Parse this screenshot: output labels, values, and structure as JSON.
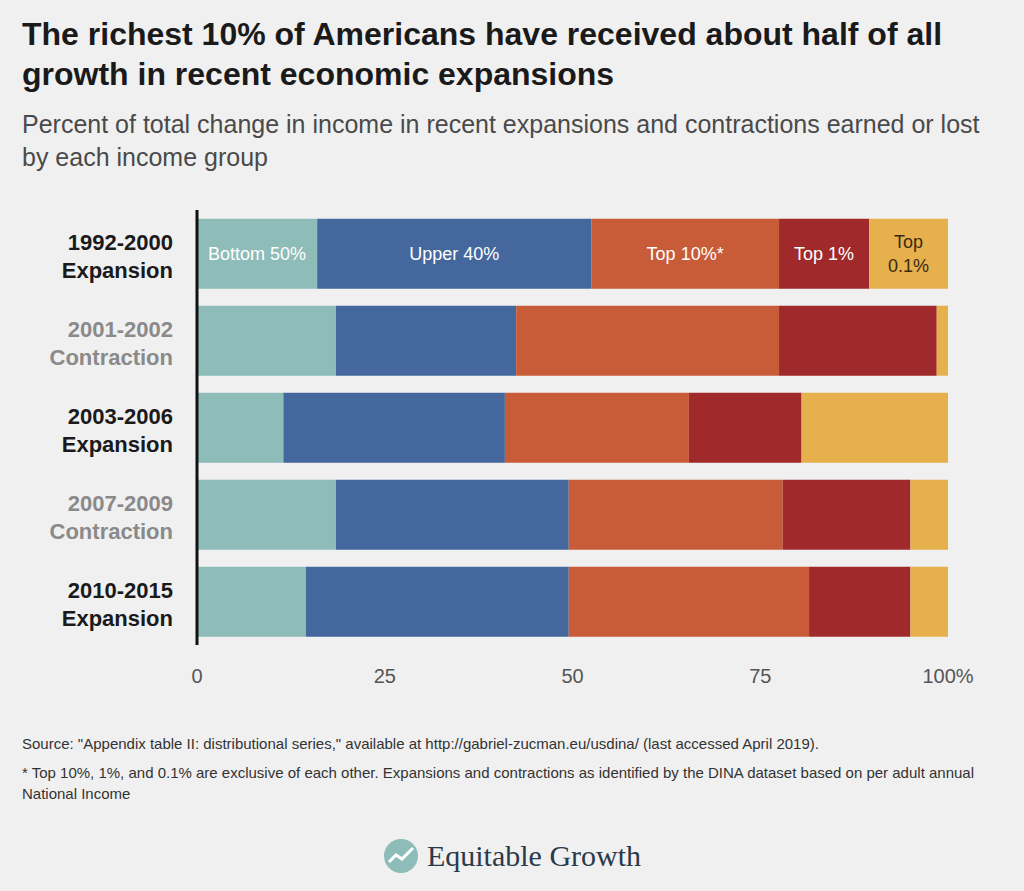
{
  "chart_data": {
    "type": "bar",
    "orientation": "horizontal",
    "stacked": true,
    "grid": false,
    "title": "The richest 10% of Americans have received about half of all growth in recent economic expansions",
    "subtitle": "Percent of total change in income in recent expansions and contractions earned or lost by each income group",
    "categories": [
      "1992-2000 Expansion",
      "2001-2002 Contraction",
      "2003-2006 Expansion",
      "2007-2009 Contraction",
      "2010-2015 Expansion"
    ],
    "series": [
      {
        "name": "Bottom 50%",
        "color": "#8dbcb9",
        "values": [
          16,
          18.5,
          11.5,
          18.5,
          14.5
        ]
      },
      {
        "name": "Upper 40%",
        "color": "#44689e",
        "values": [
          36.5,
          24,
          29.5,
          31,
          35
        ]
      },
      {
        "name": "Top 10%*",
        "color": "#c85b38",
        "values": [
          25,
          35,
          24.5,
          28.5,
          32
        ]
      },
      {
        "name": "Top 1%",
        "color": "#a02a2b",
        "values": [
          12,
          21,
          15,
          17,
          13.5
        ]
      },
      {
        "name": "Top 0.1%",
        "color": "#e6b04d",
        "values": [
          10.5,
          1.5,
          19.5,
          5,
          5
        ]
      }
    ],
    "xlim": [
      0,
      100
    ],
    "xticks": [
      0,
      25,
      50,
      75,
      {
        "value": 100,
        "label": "100%"
      }
    ],
    "annotations": [
      "Source: \"Appendix table II: distributional series,\" available at http://gabriel-zucman.eu/usdina/ (last accessed April 2019).",
      "* Top 10%, 1%, and 0.1% are exclusive of each other. Expansions and contractions as identified by the DINA dataset based on per adult annual National Income"
    ],
    "credit": "Equitable Growth"
  }
}
